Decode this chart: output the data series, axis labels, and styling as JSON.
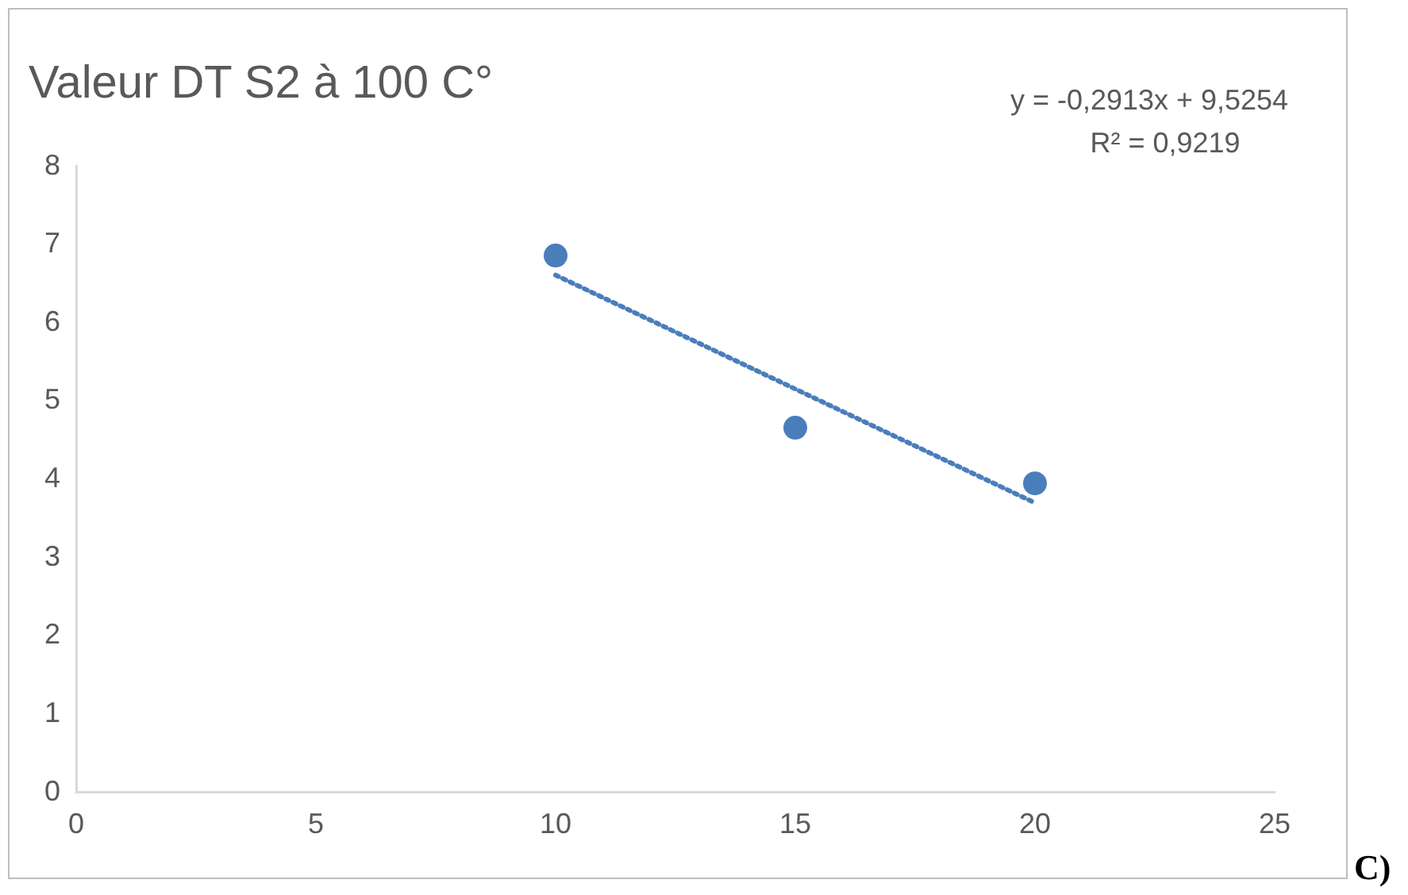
{
  "chart_data": {
    "type": "scatter",
    "title": "Valeur DT S2 à 100 C°",
    "xlim": [
      0,
      25
    ],
    "xticks": [
      0,
      5,
      10,
      15,
      20,
      25
    ],
    "ylim": [
      0,
      8
    ],
    "yticks": [
      0,
      1,
      2,
      3,
      4,
      5,
      6,
      7,
      8
    ],
    "grid": false,
    "legend": false,
    "series": [
      {
        "type": "scatter",
        "color": "#4a7ebb",
        "x": [
          10,
          15,
          20
        ],
        "values": [
          6.86,
          4.66,
          3.95
        ],
        "marker": "circle"
      },
      {
        "type": "line",
        "color": "#4a7ebb",
        "x": [
          10,
          20
        ],
        "values": [
          6.61,
          3.7
        ],
        "marker": "none",
        "line_style": "dotted"
      }
    ],
    "annotations": [
      "y = -0,2913x + 9,5254",
      "R² = 0,9219",
      "C)"
    ]
  }
}
